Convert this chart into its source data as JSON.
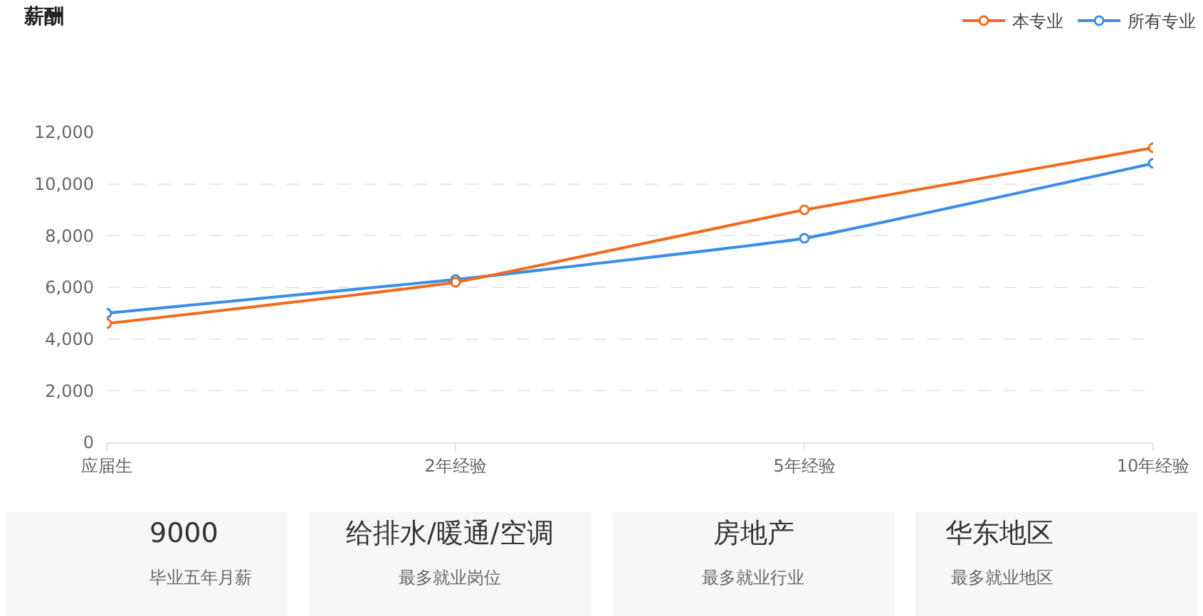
{
  "chart_data": [
    {
      "type": "line",
      "title": "薪酬",
      "categories": [
        "应届生",
        "2年经验",
        "5年经验",
        "10年经验"
      ],
      "series": [
        {
          "name": "本专业",
          "color": "#f26b1d",
          "values": [
            4600,
            6200,
            9000,
            11400
          ]
        },
        {
          "name": "所有专业",
          "color": "#3a8ee6",
          "values": [
            5000,
            6300,
            7900,
            10800
          ]
        }
      ],
      "ylim": [
        0,
        12000
      ],
      "yticks": [
        {
          "value": 0,
          "label": "0"
        },
        {
          "value": 2000,
          "label": "2,000"
        },
        {
          "value": 4000,
          "label": "4,000"
        },
        {
          "value": 6000,
          "label": "6,000"
        },
        {
          "value": 8000,
          "label": "8,000"
        },
        {
          "value": 10000,
          "label": "10,000"
        },
        {
          "value": 12000,
          "label": "12,000"
        }
      ],
      "grid": "y",
      "legend": "top right",
      "marker": "circle",
      "line_style": "solid"
    },
    {
      "type": "other",
      "annotations": [
        "9000",
        "毕业五年月薪",
        "给排水/暖通/空调",
        "最多就业岗位",
        "房地产",
        "最多就业行业",
        "华东地区",
        "最多就业地区"
      ]
    }
  ]
}
